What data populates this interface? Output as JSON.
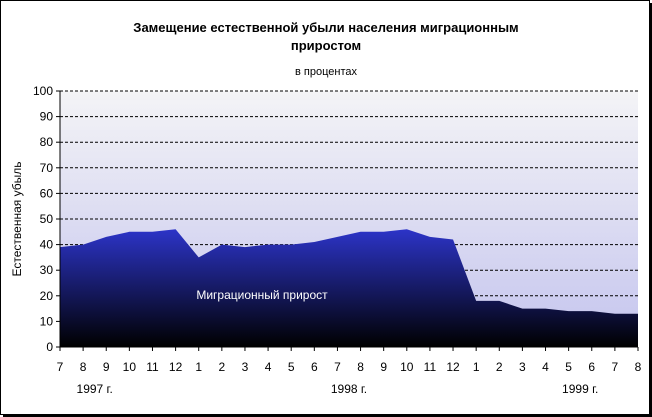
{
  "chart_data": {
    "type": "area",
    "title_line1": "Замещение естественной убыли населения миграционным",
    "title_line2": "приростом",
    "subtitle": "в процентах",
    "ylabel": "Естественная убыль",
    "ylim": [
      0,
      100
    ],
    "y_ticks": [
      "0",
      "10",
      "20",
      "30",
      "40",
      "50",
      "60",
      "70",
      "80",
      "90",
      "100"
    ],
    "grid": "horizontal-dashed",
    "x_labels": [
      "7",
      "8",
      "9",
      "10",
      "11",
      "12",
      "1",
      "2",
      "3",
      "4",
      "5",
      "6",
      "7",
      "8",
      "9",
      "10",
      "11",
      "12",
      "1",
      "2",
      "3",
      "4",
      "5",
      "6",
      "7",
      "8"
    ],
    "year_labels": [
      {
        "label": "1997 г.",
        "at_index": 1.5
      },
      {
        "label": "1998 г.",
        "at_index": 12.5
      },
      {
        "label": "1999 г.",
        "at_index": 22.5
      }
    ],
    "series": [
      {
        "values": [
          39,
          40,
          43,
          45,
          45,
          46,
          35,
          40,
          39,
          40,
          40,
          41,
          43,
          45,
          45,
          46,
          43,
          42,
          18,
          18,
          15,
          15,
          14,
          14,
          13,
          13
        ]
      }
    ],
    "annotation": "Миграционный прирост",
    "colors": {
      "area_top": "#2c34c8",
      "area_bottom": "#000000",
      "plot_top": "#f4f4f6",
      "plot_bottom": "#c4c4ee"
    }
  }
}
